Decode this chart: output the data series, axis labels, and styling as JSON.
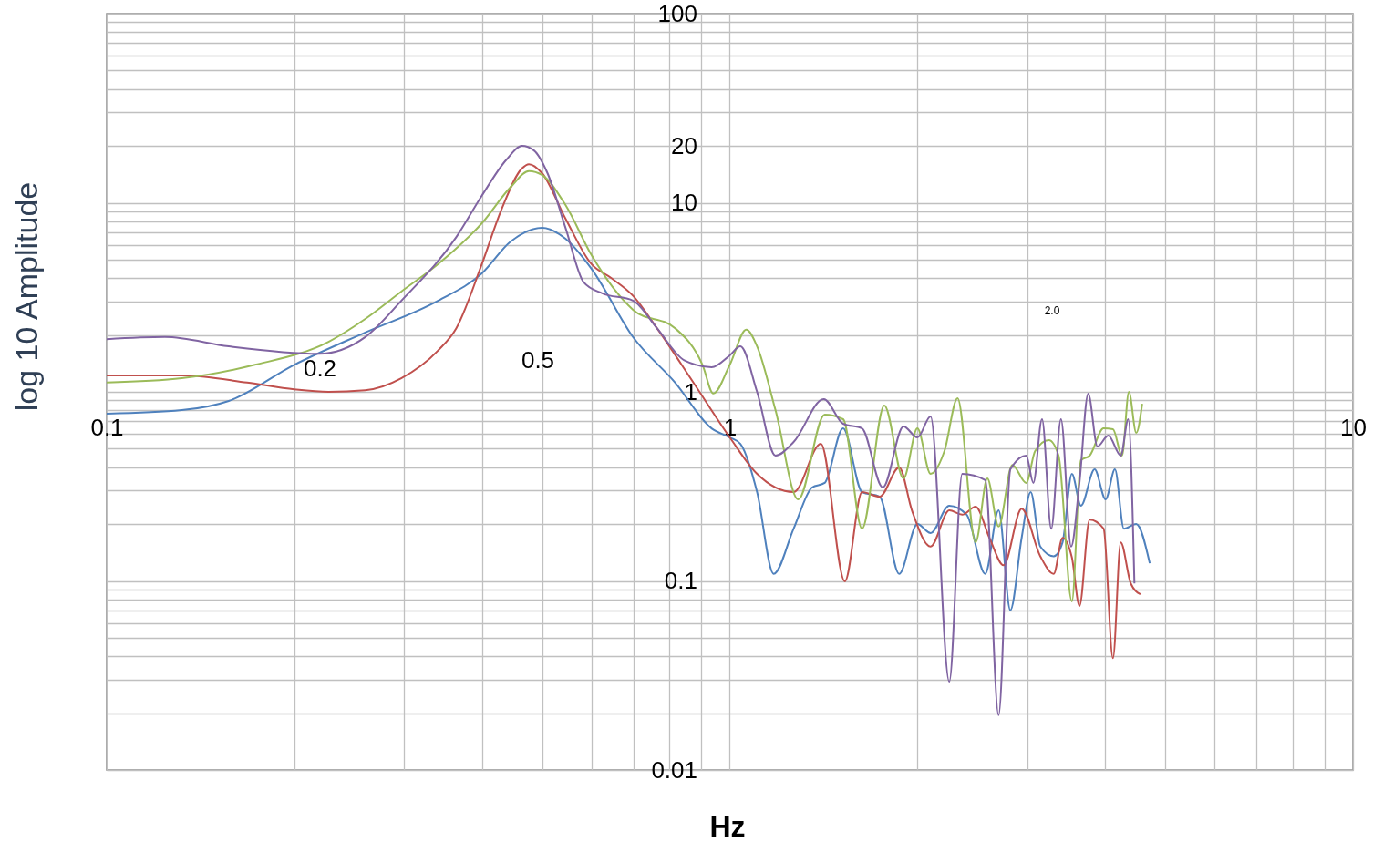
{
  "chart_data": {
    "type": "line",
    "xlabel": "Hz",
    "ylabel": "log 10  Amplitude",
    "log": "xy",
    "grid": true,
    "xlim": [
      0.1,
      10
    ],
    "ylim": [
      0.01,
      100
    ],
    "xticks": [
      0.1,
      {
        "value": 0.2,
        "label": null
      },
      {
        "value": 0.3,
        "label": null
      },
      {
        "value": 0.4,
        "label": null
      },
      {
        "value": 0.5,
        "label": null
      },
      {
        "value": 0.6,
        "label": null
      },
      {
        "value": 0.7,
        "label": null
      },
      {
        "value": 0.8,
        "label": null
      },
      {
        "value": 0.9,
        "label": null
      },
      1,
      {
        "value": 2,
        "label": null
      },
      {
        "value": 3,
        "label": null
      },
      {
        "value": 4,
        "label": null
      },
      {
        "value": 5,
        "label": null
      },
      {
        "value": 6,
        "label": null
      },
      {
        "value": 7,
        "label": null
      },
      {
        "value": 8,
        "label": null
      },
      {
        "value": 9,
        "label": null
      },
      10
    ],
    "yticks": [
      0.01,
      {
        "value": 0.02,
        "label": null
      },
      {
        "value": 0.03,
        "label": null
      },
      {
        "value": 0.04,
        "label": null
      },
      {
        "value": 0.05,
        "label": null
      },
      {
        "value": 0.06,
        "label": null
      },
      {
        "value": 0.07,
        "label": null
      },
      {
        "value": 0.08,
        "label": null
      },
      {
        "value": 0.09,
        "label": null
      },
      0.1,
      {
        "value": 0.2,
        "label": null
      },
      {
        "value": 0.3,
        "label": null
      },
      {
        "value": 0.4,
        "label": null
      },
      {
        "value": 0.5,
        "label": null
      },
      {
        "value": 0.6,
        "label": null
      },
      {
        "value": 0.7,
        "label": null
      },
      {
        "value": 0.8,
        "label": null
      },
      {
        "value": 0.9,
        "label": null
      },
      1,
      {
        "value": 2,
        "label": null
      },
      {
        "value": 3,
        "label": null
      },
      {
        "value": 4,
        "label": null
      },
      {
        "value": 5,
        "label": null
      },
      {
        "value": 6,
        "label": null
      },
      {
        "value": 7,
        "label": null
      },
      {
        "value": 8,
        "label": null
      },
      {
        "value": 9,
        "label": null
      },
      10,
      20,
      {
        "value": 30,
        "label": null
      },
      {
        "value": 40,
        "label": null
      },
      {
        "value": 50,
        "label": null
      },
      {
        "value": 60,
        "label": null
      },
      {
        "value": 70,
        "label": null
      },
      {
        "value": 80,
        "label": null
      },
      {
        "value": 90,
        "label": null
      },
      100
    ],
    "annotations": [
      "0.2",
      "0.5",
      "2.0"
    ],
    "series": [
      {
        "color": "#4f81bd",
        "x": [
          0.1,
          0.132,
          0.157,
          0.2,
          0.26,
          0.34,
          0.4,
          0.445,
          0.5,
          0.545,
          0.6,
          0.7,
          0.817,
          0.935,
          1,
          1.04,
          1.106,
          1.176,
          1.266,
          1.355,
          1.42,
          1.52,
          1.63,
          1.74,
          1.87,
          2.0,
          2.1,
          2.25,
          2.4,
          2.57,
          2.7,
          2.82,
          2.94,
          3.04,
          3.15,
          3.31,
          3.42,
          3.54,
          3.66,
          3.85,
          4.01,
          4.15,
          4.29,
          4.49,
          4.72
        ],
        "values": [
          0.766,
          0.8,
          0.895,
          1.39,
          2.06,
          3.03,
          4.23,
          6.24,
          7.36,
          6.45,
          4.47,
          1.94,
          1.12,
          0.641,
          0.574,
          0.531,
          0.295,
          0.109,
          0.189,
          0.312,
          0.33,
          0.641,
          0.295,
          0.279,
          0.109,
          0.2,
          0.179,
          0.25,
          0.224,
          0.109,
          0.236,
          0.07,
          0.169,
          0.295,
          0.152,
          0.135,
          0.16,
          0.368,
          0.25,
          0.389,
          0.27,
          0.389,
          0.189,
          0.2,
          0.124
        ]
      },
      {
        "color": "#c0504d",
        "x": [
          0.1,
          0.132,
          0.168,
          0.2,
          0.227,
          0.26,
          0.297,
          0.34,
          0.364,
          0.4,
          0.43,
          0.464,
          0.476,
          0.5,
          0.545,
          0.6,
          0.645,
          0.7,
          0.764,
          0.874,
          1,
          1.106,
          1.266,
          1.4,
          1.53,
          1.63,
          1.74,
          1.87,
          1.96,
          2.1,
          2.25,
          2.36,
          2.48,
          2.61,
          2.75,
          2.94,
          3.15,
          3.31,
          3.42,
          3.54,
          3.64,
          3.78,
          3.98,
          4.12,
          4.24,
          4.4,
          4.56
        ],
        "values": [
          1.22,
          1.22,
          1.12,
          1.03,
          1,
          1.02,
          1.18,
          1.65,
          2.17,
          4.73,
          9.2,
          15.2,
          16.0,
          14.3,
          8.24,
          4.73,
          4.0,
          3.21,
          2.17,
          1.12,
          0.574,
          0.368,
          0.295,
          0.531,
          0.0995,
          0.295,
          0.279,
          0.398,
          0.236,
          0.152,
          0.236,
          0.224,
          0.247,
          0.169,
          0.121,
          0.241,
          0.135,
          0.109,
          0.169,
          0.133,
          0.0737,
          0.211,
          0.189,
          0.039,
          0.16,
          0.097,
          0.085
        ]
      },
      {
        "color": "#9bbb59",
        "x": [
          0.1,
          0.132,
          0.173,
          0.227,
          0.26,
          0.297,
          0.34,
          0.4,
          0.445,
          0.476,
          0.5,
          0.545,
          0.6,
          0.7,
          0.817,
          0.904,
          0.941,
          1,
          1.063,
          1.106,
          1.184,
          1.288,
          1.42,
          1.52,
          1.63,
          1.77,
          1.9,
          2.0,
          2.1,
          2.21,
          2.32,
          2.48,
          2.59,
          2.7,
          2.84,
          2.99,
          3.09,
          3.25,
          3.37,
          3.54,
          3.66,
          3.78,
          3.98,
          4.12,
          4.26,
          4.37,
          4.49,
          4.59
        ],
        "values": [
          1.12,
          1.18,
          1.39,
          1.84,
          2.43,
          3.39,
          4.73,
          7.79,
          12.1,
          14.7,
          14.0,
          9.72,
          5.28,
          2.71,
          2.17,
          1.39,
          0.98,
          1.39,
          2.13,
          1.74,
          0.8,
          0.27,
          0.758,
          0.717,
          0.189,
          0.847,
          0.348,
          0.641,
          0.368,
          0.486,
          0.925,
          0.16,
          0.348,
          0.194,
          0.411,
          0.33,
          0.486,
          0.555,
          0.46,
          0.078,
          0.435,
          0.46,
          0.641,
          0.635,
          0.46,
          1.0,
          0.607,
          0.865
        ]
      },
      {
        "color": "#8064a2",
        "x": [
          0.1,
          0.124,
          0.157,
          0.219,
          0.26,
          0.297,
          0.364,
          0.4,
          0.438,
          0.464,
          0.485,
          0.51,
          0.545,
          0.583,
          0.624,
          0.7,
          0.764,
          0.845,
          0.935,
          1,
          1.04,
          1.106,
          1.184,
          1.266,
          1.415,
          1.52,
          1.63,
          1.76,
          1.9,
          2.0,
          2.1,
          2.25,
          2.36,
          2.57,
          2.7,
          2.82,
          2.99,
          3.07,
          3.17,
          3.28,
          3.4,
          3.53,
          3.64,
          3.76,
          3.89,
          4.05,
          4.24,
          4.36,
          4.46
        ],
        "values": [
          1.9,
          1.95,
          1.74,
          1.59,
          1.95,
          3.03,
          6.59,
          10.9,
          16.9,
          20.0,
          18.9,
          14.3,
          7.36,
          3.79,
          3.32,
          3.03,
          2.17,
          1.47,
          1.35,
          1.56,
          1.74,
          1.0,
          0.46,
          0.543,
          0.915,
          0.678,
          0.641,
          0.312,
          0.656,
          0.574,
          0.741,
          0.0293,
          0.368,
          0.341,
          0.0195,
          0.389,
          0.46,
          0.33,
          0.717,
          0.189,
          0.717,
          0.152,
          0.33,
          0.978,
          0.514,
          0.587,
          0.46,
          0.717,
          0.097
        ]
      }
    ]
  }
}
